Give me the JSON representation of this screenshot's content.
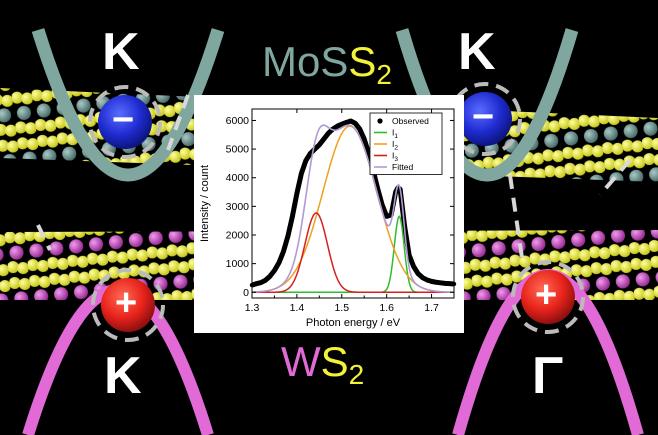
{
  "labels": {
    "top_left_valley": "K",
    "top_right_valley": "K",
    "bottom_left_valley": "K",
    "bottom_right_valley": "Γ",
    "minus_sign": "−",
    "plus_sign": "+",
    "top_material_a": "MoS",
    "top_material_b": "S",
    "top_material_sub": "2",
    "bottom_material_a": "W",
    "bottom_material_b": "S",
    "bottom_material_sub": "2"
  },
  "colors": {
    "background": "#000000",
    "mos2_band": "#7fa79f",
    "ws2_band": "#e26ad6",
    "electron": "#1f2bd0",
    "hole": "#e8231b",
    "sulfur": "#e8e83a",
    "molybdenum": "#6e8f8c",
    "tungsten": "#cf5cc9"
  },
  "chart_data": {
    "type": "line",
    "xlabel": "Photon energy / eV",
    "ylabel": "Intensity / count",
    "xlim": [
      1.3,
      1.75
    ],
    "ylim": [
      -200,
      6400
    ],
    "xticks": [
      1.3,
      1.4,
      1.5,
      1.6,
      1.7
    ],
    "xtick_labels": [
      "1.3",
      "1.4",
      "1.5",
      "1.6",
      "1.7"
    ],
    "yticks": [
      0,
      1000,
      2000,
      3000,
      4000,
      5000,
      6000
    ],
    "ytick_labels": [
      "0",
      "1000",
      "2000",
      "3000",
      "4000",
      "5000",
      "6000"
    ],
    "legend_position": "top-right",
    "legend": [
      {
        "key": "observed",
        "label": "Observed",
        "sub": "",
        "color": "#000000",
        "marker": "dot"
      },
      {
        "key": "i1",
        "label": "I",
        "sub": "1",
        "color": "#2ebd2e",
        "marker": "line"
      },
      {
        "key": "i2",
        "label": "I",
        "sub": "2",
        "color": "#f0a020",
        "marker": "line"
      },
      {
        "key": "i3",
        "label": "I",
        "sub": "3",
        "color": "#d42020",
        "marker": "line"
      },
      {
        "key": "fitted",
        "label": "Fitted",
        "sub": "",
        "color": "#b09ad6",
        "marker": "line"
      }
    ],
    "components": {
      "i1": {
        "center": 1.628,
        "amplitude": 2650,
        "sigma": 0.011
      },
      "i2": {
        "center": 1.518,
        "amplitude": 5800,
        "sigma": 0.06
      },
      "i3": {
        "center": 1.443,
        "amplitude": 2770,
        "sigma": 0.025
      }
    },
    "observed": {
      "x": [
        1.3,
        1.31,
        1.32,
        1.33,
        1.34,
        1.35,
        1.36,
        1.37,
        1.38,
        1.39,
        1.4,
        1.41,
        1.42,
        1.43,
        1.44,
        1.45,
        1.46,
        1.47,
        1.48,
        1.49,
        1.5,
        1.51,
        1.52,
        1.53,
        1.54,
        1.55,
        1.56,
        1.57,
        1.58,
        1.59,
        1.6,
        1.61,
        1.62,
        1.625,
        1.63,
        1.64,
        1.65,
        1.66,
        1.67,
        1.68,
        1.69,
        1.7,
        1.71,
        1.72,
        1.73,
        1.74,
        1.75
      ],
      "y": [
        250,
        300,
        340,
        420,
        560,
        760,
        1030,
        1420,
        1960,
        2650,
        3450,
        4150,
        4600,
        4850,
        5000,
        5150,
        5350,
        5550,
        5700,
        5800,
        5870,
        5930,
        5980,
        5900,
        5700,
        5350,
        4850,
        4250,
        3620,
        3050,
        2650,
        2700,
        3500,
        3650,
        3600,
        2300,
        1300,
        900,
        650,
        510,
        430,
        380,
        350,
        330,
        310,
        300,
        290
      ]
    }
  }
}
